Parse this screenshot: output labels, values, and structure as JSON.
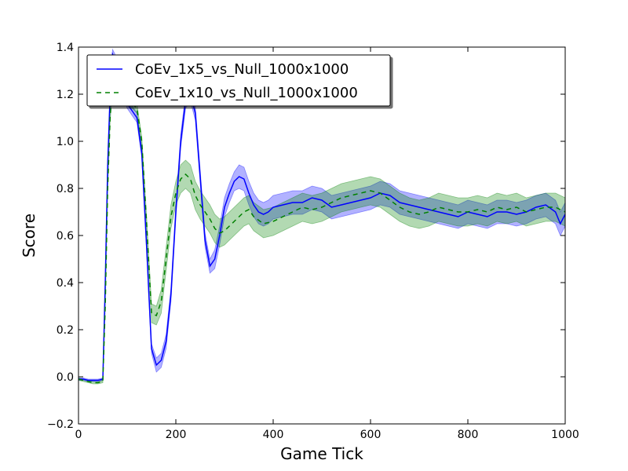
{
  "chart_data": {
    "type": "line",
    "xlabel": "Game Tick",
    "ylabel": "Score",
    "xlim": [
      0,
      1000
    ],
    "ylim": [
      -0.2,
      1.4
    ],
    "xticks": [
      "0",
      "200",
      "400",
      "600",
      "800",
      "1000"
    ],
    "yticks": [
      "−0.2",
      "0.0",
      "0.2",
      "0.4",
      "0.6",
      "0.8",
      "1.0",
      "1.2",
      "1.4"
    ],
    "grid": false,
    "legend_position": "upper-left",
    "series": [
      {
        "name": "CoEv_1x5_vs_Null_1000x1000",
        "color": "#0000ff",
        "band_color": "#0000ff",
        "line_style": "solid",
        "x": [
          0,
          10,
          20,
          30,
          40,
          50,
          55,
          60,
          65,
          70,
          75,
          80,
          90,
          100,
          110,
          120,
          130,
          140,
          150,
          160,
          170,
          180,
          190,
          200,
          210,
          220,
          230,
          240,
          250,
          260,
          270,
          280,
          290,
          300,
          310,
          320,
          330,
          340,
          350,
          360,
          370,
          380,
          390,
          400,
          420,
          440,
          460,
          480,
          500,
          520,
          540,
          560,
          580,
          600,
          620,
          640,
          660,
          680,
          700,
          720,
          740,
          760,
          780,
          800,
          820,
          840,
          860,
          880,
          900,
          920,
          940,
          960,
          980,
          990,
          1000
        ],
        "y": [
          -0.01,
          -0.01,
          -0.015,
          -0.015,
          -0.015,
          -0.01,
          0.4,
          0.9,
          1.2,
          1.37,
          1.35,
          1.3,
          1.22,
          1.16,
          1.13,
          1.1,
          0.95,
          0.55,
          0.12,
          0.05,
          0.07,
          0.15,
          0.35,
          0.7,
          1.0,
          1.17,
          1.2,
          1.12,
          0.85,
          0.58,
          0.47,
          0.5,
          0.6,
          0.72,
          0.78,
          0.83,
          0.85,
          0.84,
          0.78,
          0.73,
          0.7,
          0.69,
          0.7,
          0.72,
          0.73,
          0.74,
          0.74,
          0.76,
          0.75,
          0.72,
          0.73,
          0.74,
          0.75,
          0.76,
          0.78,
          0.77,
          0.74,
          0.73,
          0.72,
          0.71,
          0.7,
          0.69,
          0.68,
          0.7,
          0.69,
          0.68,
          0.7,
          0.7,
          0.69,
          0.7,
          0.72,
          0.73,
          0.7,
          0.65,
          0.69
        ],
        "band_halfwidth": [
          0.005,
          0.005,
          0.005,
          0.005,
          0.005,
          0.005,
          0.01,
          0.02,
          0.02,
          0.02,
          0.02,
          0.02,
          0.02,
          0.02,
          0.02,
          0.02,
          0.02,
          0.02,
          0.02,
          0.03,
          0.03,
          0.03,
          0.03,
          0.03,
          0.03,
          0.03,
          0.03,
          0.03,
          0.03,
          0.03,
          0.03,
          0.04,
          0.04,
          0.04,
          0.04,
          0.04,
          0.05,
          0.05,
          0.05,
          0.05,
          0.05,
          0.05,
          0.05,
          0.05,
          0.05,
          0.05,
          0.05,
          0.05,
          0.05,
          0.05,
          0.05,
          0.05,
          0.05,
          0.05,
          0.05,
          0.05,
          0.05,
          0.05,
          0.05,
          0.05,
          0.05,
          0.05,
          0.05,
          0.05,
          0.05,
          0.05,
          0.05,
          0.05,
          0.05,
          0.05,
          0.05,
          0.05,
          0.05,
          0.05,
          0.05
        ]
      },
      {
        "name": "CoEv_1x10_vs_Null_1000x1000",
        "color": "#008000",
        "band_color": "#008000",
        "line_style": "dashed",
        "x": [
          0,
          10,
          20,
          30,
          40,
          50,
          55,
          60,
          65,
          70,
          80,
          90,
          100,
          110,
          120,
          130,
          140,
          150,
          160,
          170,
          180,
          190,
          200,
          210,
          220,
          230,
          240,
          250,
          260,
          270,
          280,
          290,
          300,
          310,
          320,
          330,
          340,
          350,
          360,
          380,
          400,
          420,
          440,
          460,
          480,
          500,
          520,
          540,
          560,
          580,
          600,
          620,
          640,
          660,
          680,
          700,
          720,
          740,
          760,
          780,
          800,
          820,
          840,
          860,
          880,
          900,
          920,
          940,
          960,
          980,
          1000
        ],
        "y": [
          -0.01,
          -0.015,
          -0.02,
          -0.025,
          -0.025,
          -0.02,
          0.3,
          0.8,
          1.1,
          1.25,
          1.24,
          1.2,
          1.18,
          1.16,
          1.14,
          1.0,
          0.65,
          0.27,
          0.26,
          0.32,
          0.5,
          0.68,
          0.78,
          0.84,
          0.86,
          0.84,
          0.77,
          0.73,
          0.7,
          0.67,
          0.63,
          0.61,
          0.62,
          0.64,
          0.66,
          0.68,
          0.7,
          0.71,
          0.68,
          0.65,
          0.66,
          0.68,
          0.7,
          0.72,
          0.71,
          0.72,
          0.74,
          0.76,
          0.77,
          0.78,
          0.79,
          0.78,
          0.75,
          0.72,
          0.7,
          0.69,
          0.7,
          0.72,
          0.71,
          0.7,
          0.7,
          0.71,
          0.7,
          0.72,
          0.71,
          0.72,
          0.7,
          0.71,
          0.72,
          0.72,
          0.7
        ],
        "band_halfwidth": [
          0.005,
          0.005,
          0.005,
          0.005,
          0.005,
          0.005,
          0.01,
          0.02,
          0.02,
          0.02,
          0.02,
          0.02,
          0.02,
          0.02,
          0.02,
          0.02,
          0.03,
          0.04,
          0.04,
          0.05,
          0.05,
          0.05,
          0.05,
          0.06,
          0.06,
          0.06,
          0.06,
          0.06,
          0.06,
          0.06,
          0.06,
          0.06,
          0.06,
          0.06,
          0.06,
          0.06,
          0.06,
          0.06,
          0.06,
          0.06,
          0.06,
          0.06,
          0.06,
          0.06,
          0.06,
          0.06,
          0.06,
          0.06,
          0.06,
          0.06,
          0.06,
          0.06,
          0.06,
          0.06,
          0.06,
          0.06,
          0.06,
          0.06,
          0.06,
          0.06,
          0.06,
          0.06,
          0.06,
          0.06,
          0.06,
          0.06,
          0.06,
          0.06,
          0.06,
          0.06,
          0.06
        ]
      }
    ]
  }
}
